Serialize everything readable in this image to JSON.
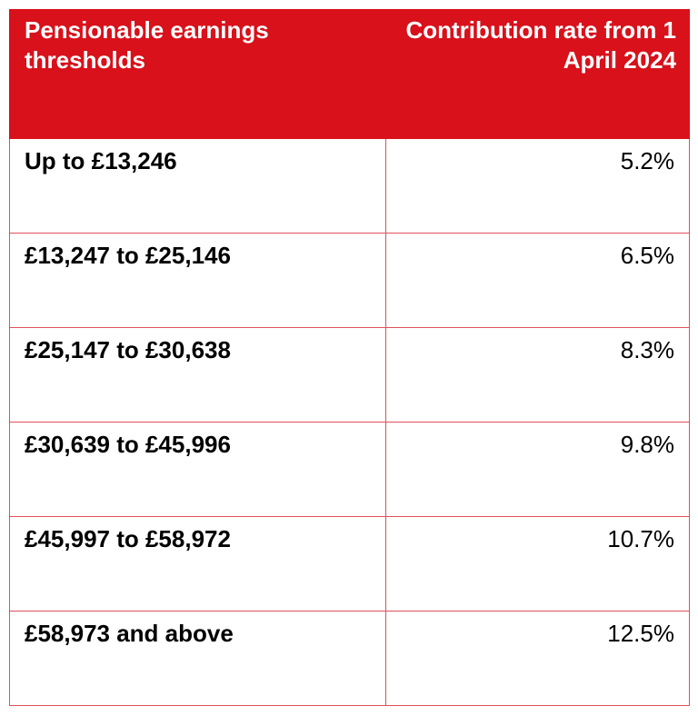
{
  "table": {
    "header": [
      "Pensionable earnings thresholds",
      "Contribution rate from 1 April 2024"
    ],
    "rows": [
      [
        "Up to £13,246",
        "5.2%"
      ],
      [
        "£13,247 to £25,146",
        "6.5%"
      ],
      [
        "£25,147 to £30,638",
        "8.3%"
      ],
      [
        "£30,639 to £45,996",
        "9.8%"
      ],
      [
        "£45,997 to £58,972",
        "10.7%"
      ],
      [
        "£58,973 and above",
        "12.5%"
      ]
    ]
  }
}
